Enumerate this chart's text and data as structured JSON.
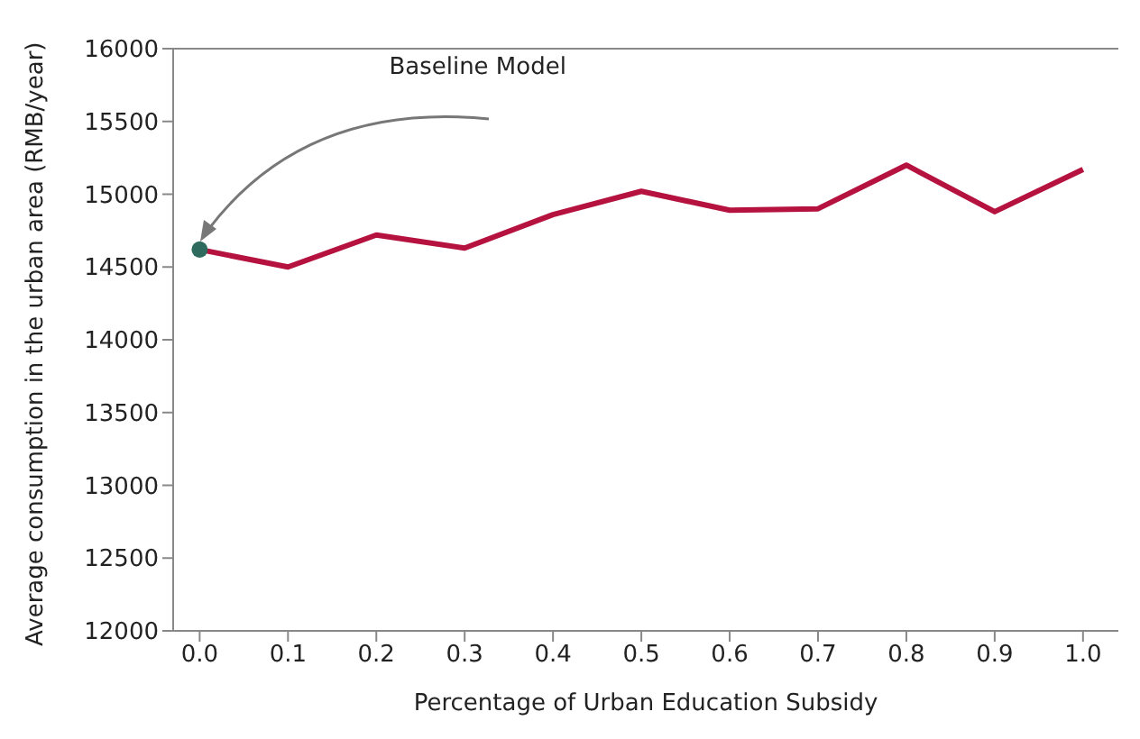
{
  "chart_data": {
    "type": "line",
    "xlabel": "Percentage of Urban Education Subsidy",
    "ylabel": "Average consumption in the urban area (RMB/year)",
    "x": [
      0,
      0.1,
      0.2,
      0.3,
      0.4,
      0.5,
      0.6,
      0.7,
      0.8,
      0.9,
      1.0
    ],
    "series": [
      {
        "color": "#b5123f",
        "values": [
          14620,
          14500,
          14720,
          14630,
          14860,
          15020,
          14890,
          14900,
          15200,
          14880,
          15170
        ]
      },
      {
        "type": "scatter",
        "color": "#2e6b5e",
        "x": [
          0
        ],
        "values": [
          14620
        ],
        "marker": "circle"
      }
    ],
    "xlim": [
      -0.03,
      1.04
    ],
    "xticks": [
      {
        "value": 0,
        "label": "0.0"
      },
      {
        "value": 0.1,
        "label": "0.1"
      },
      {
        "value": 0.2,
        "label": "0.2"
      },
      {
        "value": 0.3,
        "label": "0.3"
      },
      {
        "value": 0.4,
        "label": "0.4"
      },
      {
        "value": 0.5,
        "label": "0.5"
      },
      {
        "value": 0.6,
        "label": "0.6"
      },
      {
        "value": 0.7,
        "label": "0.7"
      },
      {
        "value": 0.8,
        "label": "0.8"
      },
      {
        "value": 0.9,
        "label": "0.9"
      },
      {
        "value": 1.0,
        "label": "1.0"
      }
    ],
    "ylim": [
      12000,
      16000
    ],
    "yticks": [
      12000,
      12500,
      13000,
      13500,
      14000,
      14500,
      15000,
      15500,
      16000
    ],
    "annotations": [
      "Baseline Model"
    ],
    "grid": false,
    "legend": false,
    "marker": "none",
    "line_style": "solid"
  }
}
